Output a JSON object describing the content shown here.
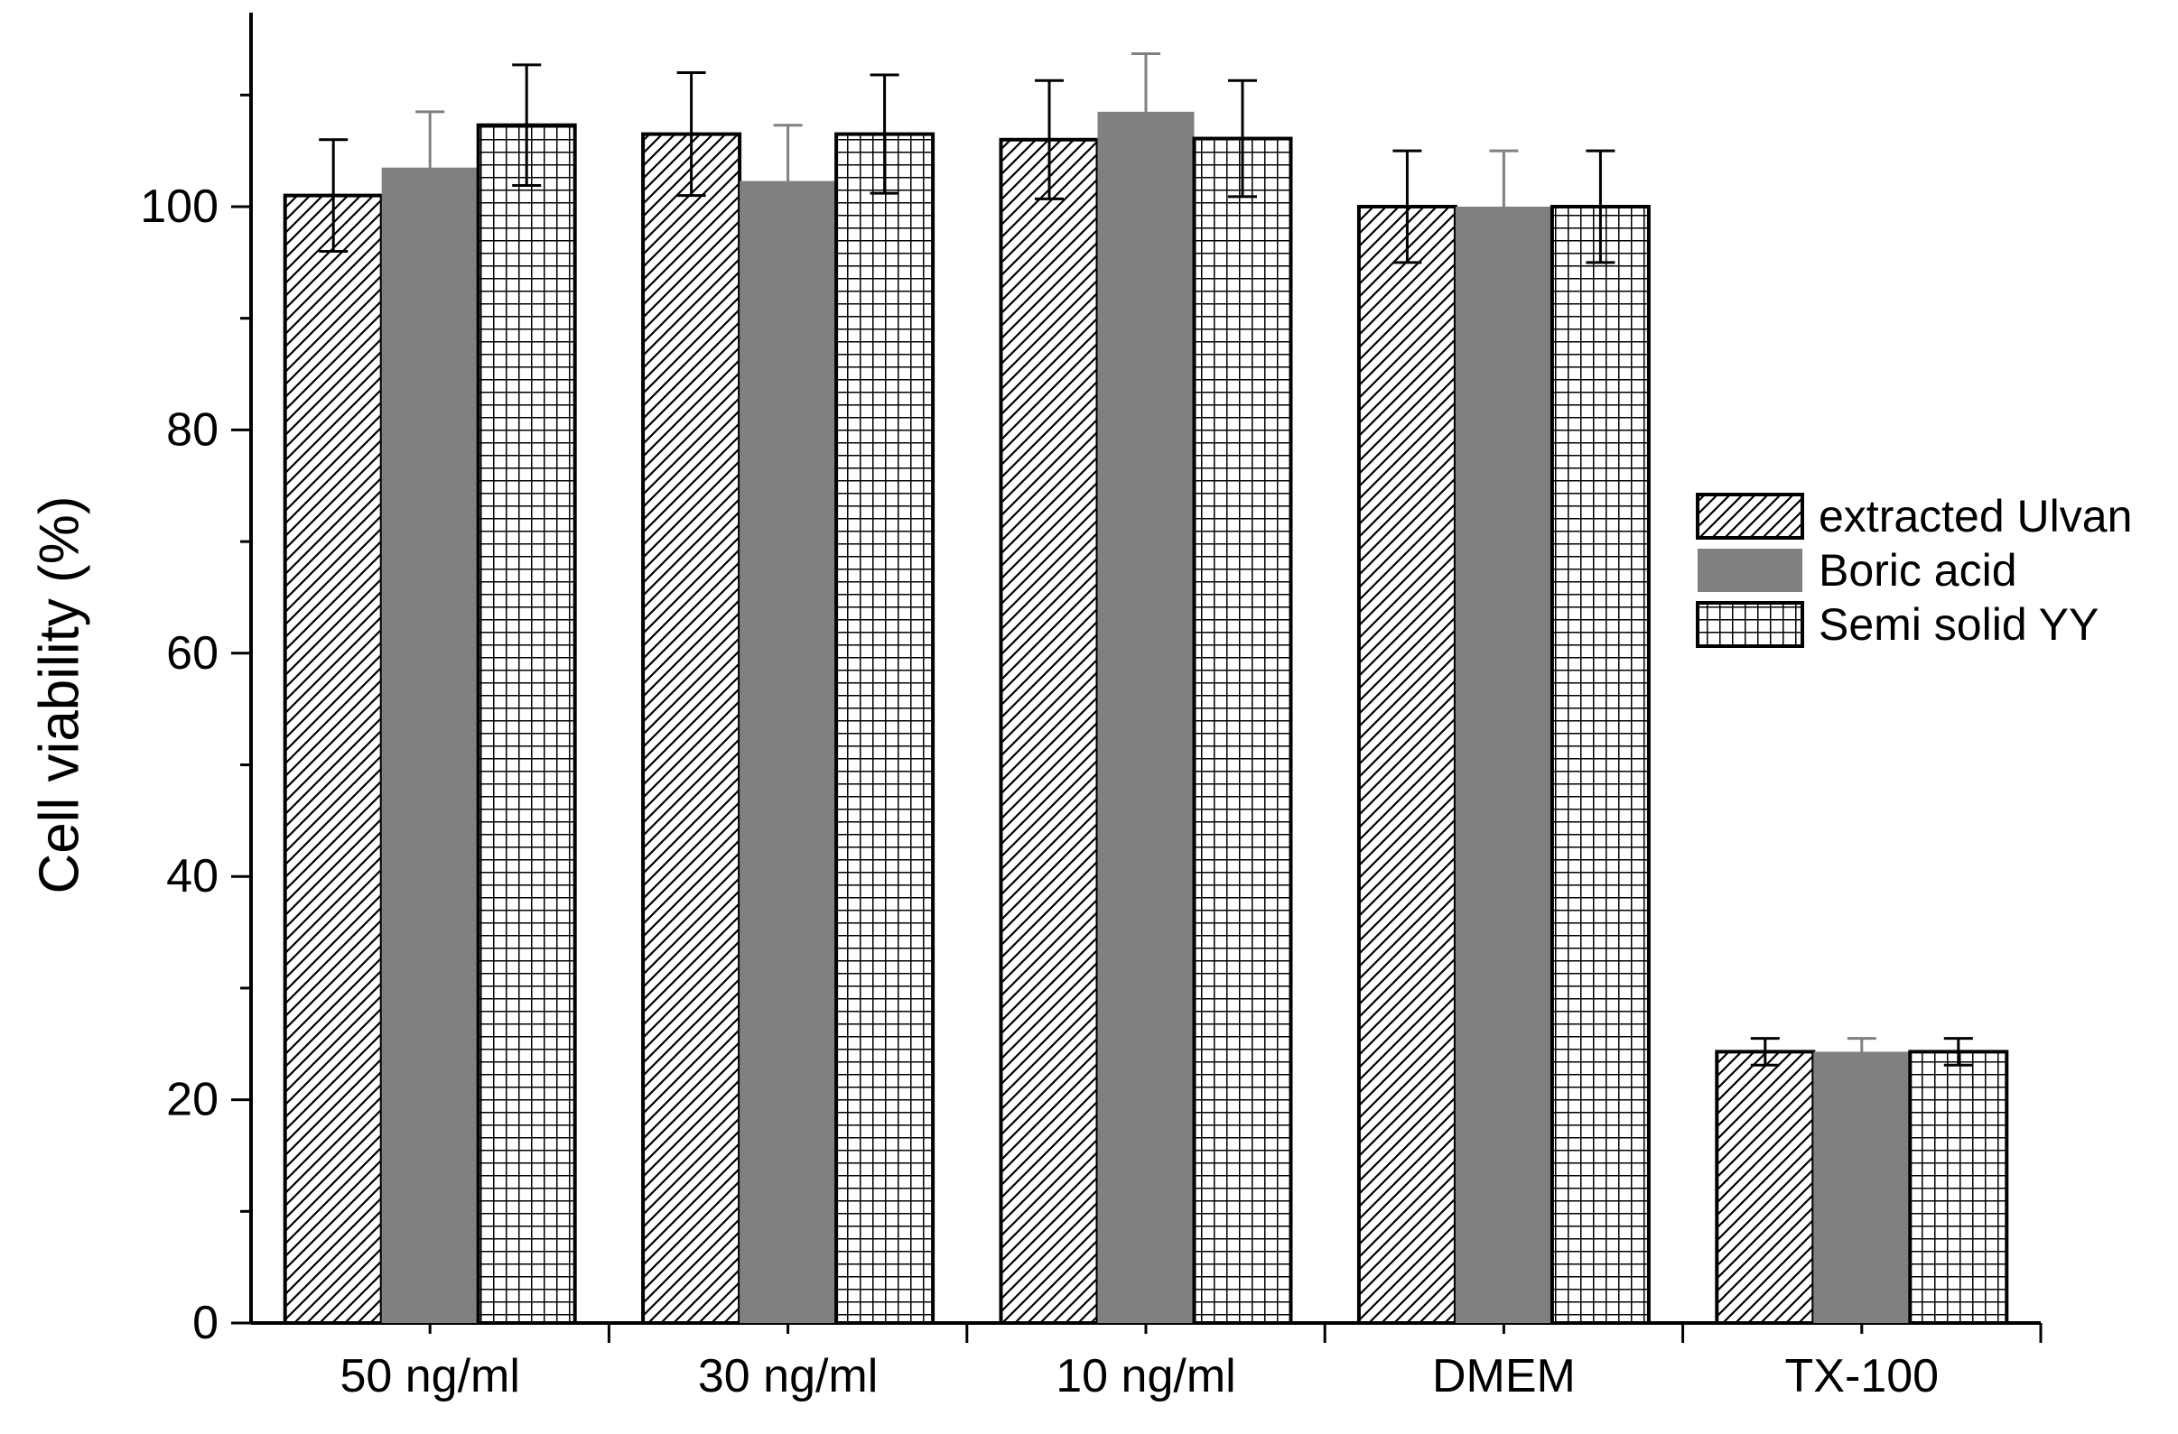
{
  "chart_data": {
    "type": "bar",
    "title": "",
    "xlabel": "",
    "ylabel": "Cell viability (%)",
    "categories": [
      "50 ng/ml",
      "30 ng/ml",
      "10 ng/ml",
      "DMEM",
      "TX-100"
    ],
    "series": [
      {
        "name": "extracted Ulvan",
        "pattern": "diagonal-hatch",
        "values": [
          101,
          106.5,
          106,
          100,
          24.3
        ],
        "errors": [
          5,
          5.5,
          5.3,
          5,
          1.2
        ]
      },
      {
        "name": "Boric acid",
        "pattern": "solid-gray",
        "color": "#808080",
        "values": [
          103.5,
          102.3,
          108.5,
          100,
          24.3
        ],
        "errors": [
          5,
          5,
          5.2,
          5,
          1.2
        ]
      },
      {
        "name": "Semi solid YY",
        "pattern": "grid",
        "values": [
          107.3,
          106.5,
          106.1,
          100,
          24.3
        ],
        "errors": [
          5.4,
          5.3,
          5.2,
          5,
          1.2
        ]
      }
    ],
    "ylim": [
      0,
      117
    ],
    "yticks": [
      0,
      20,
      40,
      60,
      80,
      100
    ],
    "y_minor_step": 10,
    "grid": false,
    "legend_position": "right"
  }
}
